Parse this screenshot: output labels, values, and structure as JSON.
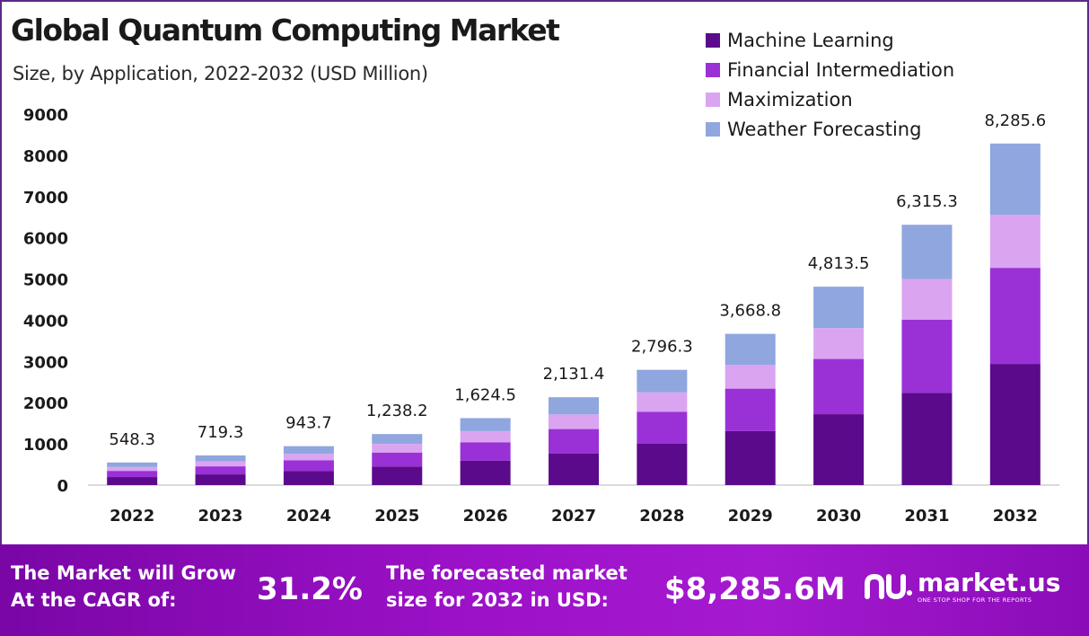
{
  "header": {
    "title": "Global Quantum Computing Market",
    "subtitle": "Size, by Application, 2022-2032 (USD Million)"
  },
  "chart_data": {
    "type": "bar",
    "stacked": true,
    "categories": [
      "2022",
      "2023",
      "2024",
      "2025",
      "2026",
      "2027",
      "2028",
      "2029",
      "2030",
      "2031",
      "2032"
    ],
    "series": [
      {
        "name": "Machine Learning",
        "color": "#5b0a8c",
        "values": [
          195,
          260,
          345,
          450,
          590,
          770,
          1010,
          1310,
          1720,
          2240,
          2940
        ]
      },
      {
        "name": "Financial Intermediation",
        "color": "#9a31d6",
        "values": [
          150,
          195,
          255,
          340,
          445,
          590,
          770,
          1030,
          1340,
          1770,
          2330
        ]
      },
      {
        "name": "Maximization",
        "color": "#dba4f1",
        "values": [
          95,
          120,
          160,
          210,
          275,
          355,
          470,
          580,
          750,
          990,
          1290
        ]
      },
      {
        "name": "Weather Forecasting",
        "color": "#8fa6df",
        "values": [
          108.3,
          144.3,
          183.7,
          238.2,
          314.5,
          416.4,
          546.3,
          748.8,
          1003.5,
          1315.3,
          1725.6
        ]
      }
    ],
    "totals": [
      "548.3",
      "719.3",
      "943.7",
      "1,238.2",
      "1,624.5",
      "2,131.4",
      "2,796.3",
      "3,668.8",
      "4,813.5",
      "6,315.3",
      "8,285.6"
    ],
    "y_ticks": [
      "0",
      "1000",
      "2000",
      "3000",
      "4000",
      "5000",
      "6000",
      "7000",
      "8000",
      "9000"
    ],
    "ylim": [
      0,
      9000
    ],
    "grid": false,
    "legend_position": "top-right"
  },
  "footer": {
    "cagr_label_line1": "The Market will Grow",
    "cagr_label_line2": "At the CAGR of:",
    "cagr_value": "31.2%",
    "forecast_label_line1": "The forecasted market",
    "forecast_label_line2": "size for 2032 in USD:",
    "forecast_value": "$8,285.6M",
    "brand_name": "market.us",
    "brand_tagline": "ONE STOP SHOP FOR THE REPORTS"
  }
}
